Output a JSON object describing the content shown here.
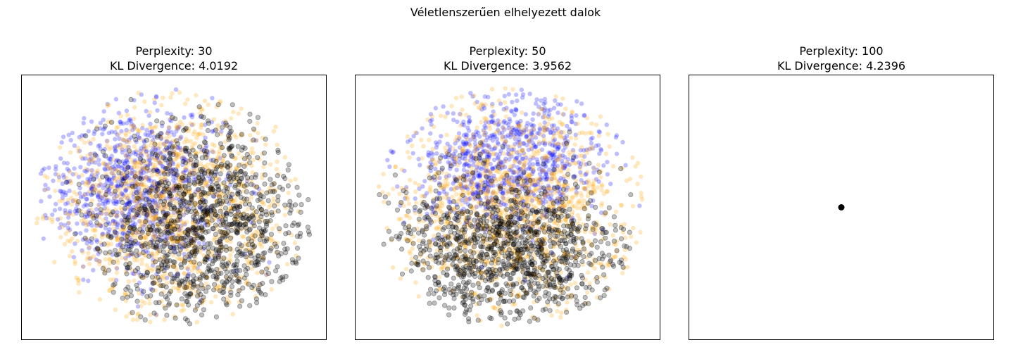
{
  "figure": {
    "suptitle": "Véletlenszerűen elhelyezett dalok"
  },
  "panels": [
    {
      "title_line1": "Perplexity: 30",
      "title_line2": "KL Divergence: 4.0192"
    },
    {
      "title_line1": "Perplexity: 50",
      "title_line2": "KL Divergence: 3.9562"
    },
    {
      "title_line1": "Perplexity: 100",
      "title_line2": "KL Divergence: 4.2396"
    }
  ],
  "colors": {
    "series_blue": "#0000ff",
    "series_orange": "#ffa500",
    "series_black": "#000000"
  },
  "chart_data": [
    {
      "type": "scatter",
      "title": "Perplexity: 30\nKL Divergence: 4.0192",
      "axes_visible_ticks": false,
      "grid": false,
      "legend": "none",
      "xlim": [
        -1,
        1
      ],
      "ylim": [
        -1,
        1
      ],
      "point_alpha": 0.25,
      "series": [
        {
          "color": "blue",
          "cloud": {
            "cx": -0.25,
            "cy": 0.15,
            "rx": 0.65,
            "ry": 0.7,
            "count": 900
          }
        },
        {
          "color": "orange",
          "cloud": {
            "cx": 0.0,
            "cy": 0.0,
            "rx": 0.88,
            "ry": 0.9,
            "count": 1300
          }
        },
        {
          "color": "black",
          "cloud": {
            "cx": 0.2,
            "cy": -0.15,
            "rx": 0.78,
            "ry": 0.85,
            "count": 1100
          }
        }
      ],
      "note_shape": {
        "cx": 0.0,
        "cy": 0.0,
        "rx": 0.92,
        "ry": 0.9
      }
    },
    {
      "type": "scatter",
      "title": "Perplexity: 50\nKL Divergence: 3.9562",
      "axes_visible_ticks": false,
      "grid": false,
      "legend": "none",
      "xlim": [
        -1,
        1
      ],
      "ylim": [
        -1,
        1
      ],
      "point_alpha": 0.25,
      "series": [
        {
          "color": "blue",
          "cloud": {
            "cx": 0.0,
            "cy": 0.35,
            "rx": 0.7,
            "ry": 0.55,
            "count": 900
          }
        },
        {
          "color": "orange",
          "cloud": {
            "cx": 0.05,
            "cy": 0.0,
            "rx": 0.88,
            "ry": 0.92,
            "count": 1300
          }
        },
        {
          "color": "black",
          "cloud": {
            "cx": 0.0,
            "cy": -0.35,
            "rx": 0.8,
            "ry": 0.6,
            "count": 1100
          }
        }
      ],
      "note_shape": {
        "cx": 0.02,
        "cy": 0.0,
        "rx": 0.9,
        "ry": 0.92
      }
    },
    {
      "type": "scatter",
      "title": "Perplexity: 100\nKL Divergence: 4.2396",
      "axes_visible_ticks": false,
      "grid": false,
      "legend": "none",
      "xlim": [
        -1,
        1
      ],
      "ylim": [
        -1,
        1
      ],
      "point_alpha": 1.0,
      "series": [
        {
          "color": "black",
          "collapsed_point": {
            "x": 0.0,
            "y": 0.0
          }
        }
      ]
    }
  ]
}
